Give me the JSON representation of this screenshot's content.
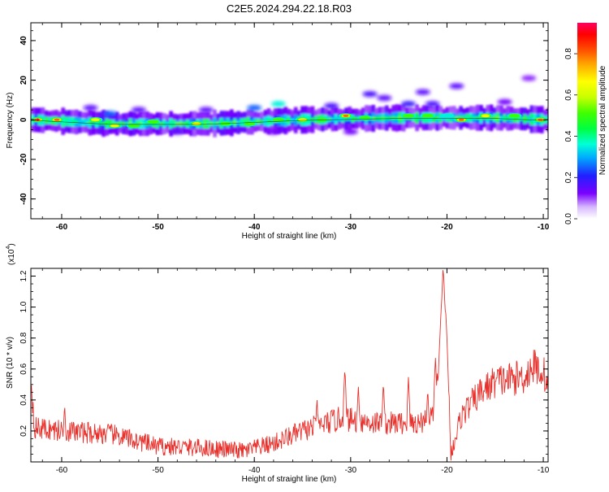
{
  "title": "C2E5.2024.294.22.18.R03",
  "colors": {
    "line": "#e8312c",
    "axis": "#000000",
    "background": "#ffffff"
  },
  "chart_data": [
    {
      "type": "heatmap",
      "xlabel": "Height of straight line (km)",
      "ylabel": "Frequency (Hz)",
      "xlim": [
        -63.2,
        -9.5
      ],
      "ylim": [
        -50,
        49
      ],
      "xticks": [
        -60,
        -50,
        -40,
        -30,
        -20,
        -10
      ],
      "yticks": [
        -40,
        -20,
        0,
        20,
        40
      ],
      "colorbar": {
        "label": "Normalized spectral amplitude",
        "range": [
          0.0,
          0.95
        ],
        "ticks": [
          "0.0",
          "0.2",
          "0.4",
          "0.6",
          "0.8"
        ],
        "tick_values": [
          0.0,
          0.2,
          0.4,
          0.6,
          0.8
        ],
        "colormap": "rainbow"
      },
      "band": {
        "description_values": "main energy band centered near 0 Hz across the whole height range",
        "center_hz": [
          {
            "x": -63,
            "y": 0
          },
          {
            "x": -55,
            "y": -2
          },
          {
            "x": -45,
            "y": -2
          },
          {
            "x": -35,
            "y": 0
          },
          {
            "x": -25,
            "y": 1
          },
          {
            "x": -15,
            "y": 1
          },
          {
            "x": -10,
            "y": 0
          }
        ],
        "half_width_hz": 3
      },
      "hotspots": [
        {
          "x": -62.5,
          "y": 0,
          "v": 0.92
        },
        {
          "x": -60.5,
          "y": 0,
          "v": 0.85
        },
        {
          "x": -56.5,
          "y": 0,
          "v": 0.7
        },
        {
          "x": -54.5,
          "y": -3,
          "v": 0.72
        },
        {
          "x": -52.5,
          "y": -3,
          "v": 0.6
        },
        {
          "x": -50.5,
          "y": -1,
          "v": 0.55
        },
        {
          "x": -46,
          "y": -2,
          "v": 0.78
        },
        {
          "x": -43,
          "y": -2,
          "v": 0.6
        },
        {
          "x": -40.5,
          "y": -2,
          "v": 0.55
        },
        {
          "x": -37.5,
          "y": 0,
          "v": 0.5
        },
        {
          "x": -35,
          "y": 0,
          "v": 0.78
        },
        {
          "x": -33,
          "y": 0,
          "v": 0.55
        },
        {
          "x": -30.5,
          "y": 2,
          "v": 0.82
        },
        {
          "x": -28.5,
          "y": 1,
          "v": 0.6
        },
        {
          "x": -24,
          "y": 2,
          "v": 0.62
        },
        {
          "x": -22,
          "y": 2,
          "v": 0.55
        },
        {
          "x": -20,
          "y": 2,
          "v": 0.45
        },
        {
          "x": -18.5,
          "y": 0,
          "v": 0.82
        },
        {
          "x": -16,
          "y": 2,
          "v": 0.65
        },
        {
          "x": -13,
          "y": 2,
          "v": 0.6
        },
        {
          "x": -10.3,
          "y": 0,
          "v": 0.88
        }
      ],
      "faint_blobs": [
        {
          "x": -37.5,
          "y": 8,
          "v": 0.3
        },
        {
          "x": -40,
          "y": 6,
          "v": 0.2
        },
        {
          "x": -32,
          "y": 7,
          "v": 0.12
        },
        {
          "x": -28,
          "y": 13,
          "v": 0.12
        },
        {
          "x": -26.5,
          "y": 11,
          "v": 0.1
        },
        {
          "x": -22.5,
          "y": 14,
          "v": 0.1
        },
        {
          "x": -24,
          "y": 8,
          "v": 0.14
        },
        {
          "x": -21.5,
          "y": 8,
          "v": 0.12
        },
        {
          "x": -19,
          "y": 17,
          "v": 0.1
        },
        {
          "x": -11.5,
          "y": 21,
          "v": 0.06
        },
        {
          "x": -14,
          "y": 9,
          "v": 0.08
        },
        {
          "x": -45,
          "y": 5,
          "v": 0.1
        },
        {
          "x": -52,
          "y": 5,
          "v": 0.1
        },
        {
          "x": -55,
          "y": 3,
          "v": 0.2
        },
        {
          "x": -57,
          "y": 6,
          "v": 0.1
        },
        {
          "x": -48,
          "y": -6,
          "v": 0.1
        },
        {
          "x": -30,
          "y": -6,
          "v": 0.08
        },
        {
          "x": -38,
          "y": -6,
          "v": 0.08
        }
      ]
    },
    {
      "type": "line",
      "xlabel": "Height of straight line (km)",
      "ylabel": "SNR (10 * v/v)",
      "y_multiplier_label": "(x10",
      "y_multiplier_exponent": "4",
      "xlim": [
        -63.2,
        -9.5
      ],
      "ylim": [
        0.0,
        1.25
      ],
      "xticks": [
        -60,
        -50,
        -40,
        -30,
        -20,
        -10
      ],
      "yticks": [
        0.2,
        0.4,
        0.6,
        0.8,
        1.0,
        1.2
      ],
      "trend": [
        {
          "x": -63.2,
          "y": 0.55
        },
        {
          "x": -62.8,
          "y": 0.22
        },
        {
          "x": -60,
          "y": 0.2
        },
        {
          "x": -55,
          "y": 0.18
        },
        {
          "x": -50,
          "y": 0.1
        },
        {
          "x": -45,
          "y": 0.09
        },
        {
          "x": -41,
          "y": 0.07
        },
        {
          "x": -38,
          "y": 0.12
        },
        {
          "x": -35,
          "y": 0.2
        },
        {
          "x": -31,
          "y": 0.28
        },
        {
          "x": -27,
          "y": 0.25
        },
        {
          "x": -23,
          "y": 0.25
        },
        {
          "x": -21.5,
          "y": 0.3
        },
        {
          "x": -20.9,
          "y": 0.55
        },
        {
          "x": -20.4,
          "y": 1.25
        },
        {
          "x": -20.0,
          "y": 0.8
        },
        {
          "x": -19.6,
          "y": 0.05
        },
        {
          "x": -18.5,
          "y": 0.3
        },
        {
          "x": -16.5,
          "y": 0.45
        },
        {
          "x": -15,
          "y": 0.52
        },
        {
          "x": -12,
          "y": 0.55
        },
        {
          "x": -11,
          "y": 0.62
        },
        {
          "x": -10,
          "y": 0.58
        },
        {
          "x": -9.5,
          "y": 0.5
        }
      ],
      "spikes": [
        {
          "x": -59.7,
          "y": 0.38
        },
        {
          "x": -33.5,
          "y": 0.42
        },
        {
          "x": -30.6,
          "y": 0.61
        },
        {
          "x": -29.2,
          "y": 0.5
        },
        {
          "x": -26.6,
          "y": 0.52
        },
        {
          "x": -24,
          "y": 0.55
        },
        {
          "x": -22,
          "y": 0.48
        },
        {
          "x": -21.2,
          "y": 0.68
        },
        {
          "x": -20.7,
          "y": 0.72
        }
      ],
      "noise_amplitude": 0.12,
      "sample_count": 900
    }
  ]
}
